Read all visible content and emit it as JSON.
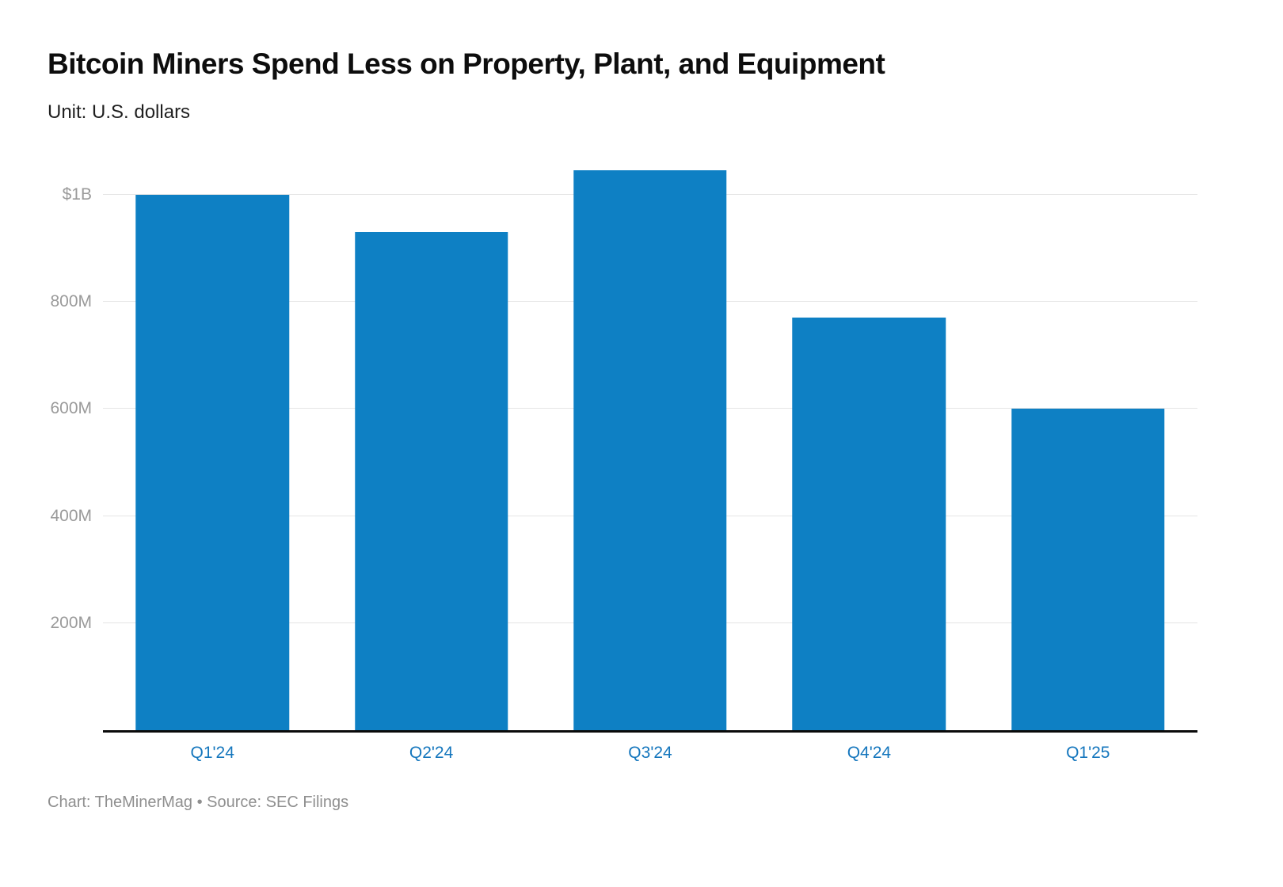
{
  "header": {
    "title": "Bitcoin Miners Spend Less on Property, Plant, and Equipment",
    "subtitle": "Unit: U.S. dollars"
  },
  "footer": {
    "attribution": "Chart: TheMinerMag • Source: SEC Filings"
  },
  "colors": {
    "bar": "#0e80c4",
    "x_label": "#1476bd",
    "y_label": "#9a9a9a",
    "gridline": "#e5e5e5",
    "axis_line": "#0a0a0a"
  },
  "chart_data": {
    "type": "bar",
    "title": "Bitcoin Miners Spend Less on Property, Plant, and Equipment",
    "subtitle": "Unit: U.S. dollars",
    "unit": "millions of U.S. dollars",
    "categories": [
      "Q1'24",
      "Q2'24",
      "Q3'24",
      "Q4'24",
      "Q1'25"
    ],
    "values": [
      1000,
      930,
      1045,
      770,
      600
    ],
    "xlabel": "",
    "ylabel": "",
    "ylim": [
      0,
      1075
    ],
    "yticks": [
      {
        "value": 1000,
        "label": "$1B"
      },
      {
        "value": 800,
        "label": "800M"
      },
      {
        "value": 600,
        "label": "600M"
      },
      {
        "value": 400,
        "label": "400M"
      },
      {
        "value": 200,
        "label": "200M"
      }
    ],
    "grid": true,
    "legend": false,
    "attribution": "Chart: TheMinerMag • Source: SEC Filings"
  }
}
